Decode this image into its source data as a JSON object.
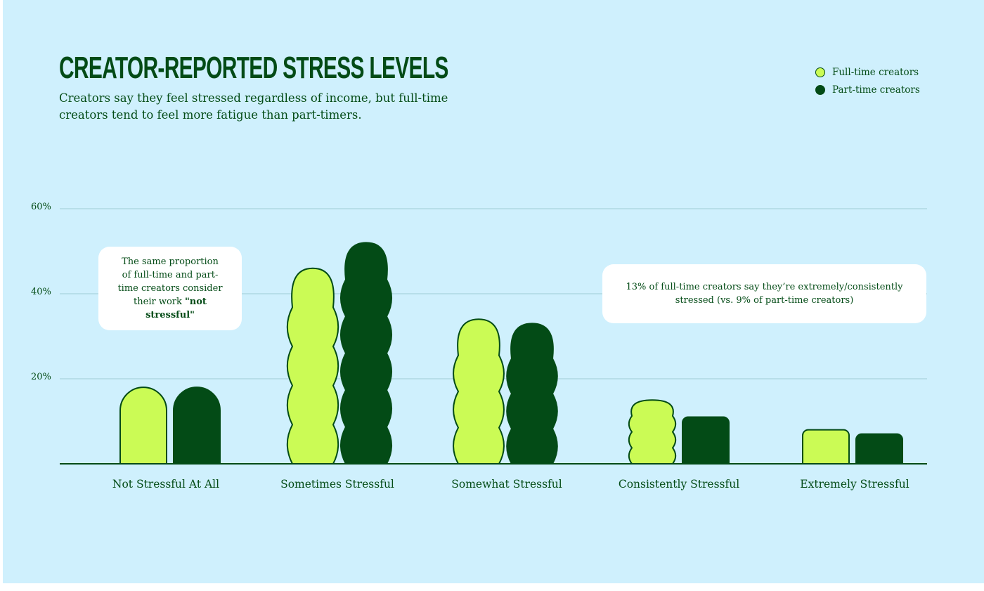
{
  "title": "CREATOR-REPORTED STRESS LEVELS",
  "subtitle": "Creators say they feel stressed regardless of income, but full-time creators tend to feel more fatigue than part-timers.",
  "legend": [
    {
      "label": "Full-time creators",
      "color": "#cbfb55"
    },
    {
      "label": "Part-time creators",
      "color": "#034b16"
    }
  ],
  "callouts": {
    "left": {
      "text": "The same proportion of full-time and part-time creators consider their work ",
      "bold": "\"not stressful\""
    },
    "right": {
      "text": "13% of full-time creators say they’re extremely/consistently stressed (vs. 9% of part-time creators)"
    }
  },
  "colors": {
    "background": "#cff0fd",
    "full_time": "#cbfb55",
    "part_time": "#034b16",
    "gridline": "#a9d3dd",
    "outline": "#034b16"
  },
  "chart_data": {
    "type": "bar",
    "title": "CREATOR-REPORTED STRESS LEVELS",
    "subtitle": "Creators say they feel stressed regardless of income, but full-time creators tend to feel more fatigue than part-timers.",
    "categories": [
      "Not Stressful At All",
      "Sometimes Stressful",
      "Somewhat  Stressful",
      "Consistently Stressful",
      "Extremely Stressful"
    ],
    "series": [
      {
        "name": "Full-time creators",
        "values": [
          18,
          46,
          34,
          15,
          8
        ]
      },
      {
        "name": "Part-time creators",
        "values": [
          18,
          52,
          33,
          11,
          7
        ]
      }
    ],
    "ylim": [
      0,
      60
    ],
    "yticks": [
      20,
      40,
      60
    ],
    "ytick_labels": [
      "20%",
      "40%",
      "60%"
    ],
    "xlabel": "",
    "ylabel": "",
    "grid": true,
    "legend_position": "top-right"
  }
}
